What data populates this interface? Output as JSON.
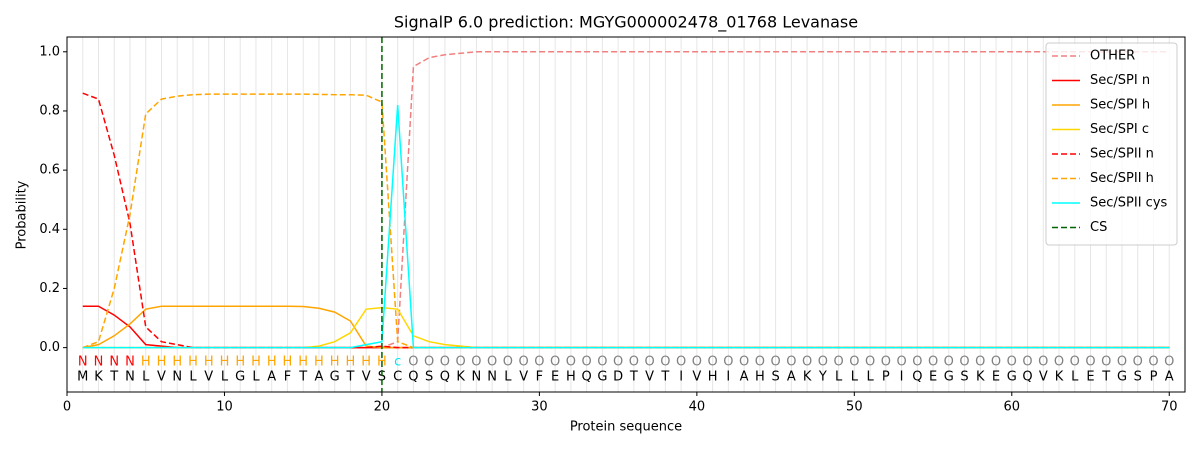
{
  "chart_data": {
    "type": "line",
    "title": "SignalP 6.0 prediction: MGYG000002478_01768 Levanase",
    "xlabel": "Protein sequence",
    "ylabel": "Probability",
    "xlim": [
      0,
      71
    ],
    "ylim": [
      -0.15,
      1.05
    ],
    "xticks": [
      0,
      10,
      20,
      30,
      40,
      50,
      60,
      70
    ],
    "yticks": [
      {
        "value": 0,
        "label": "0.0"
      },
      {
        "value": 0.2,
        "label": "0.2"
      },
      {
        "value": 0.4,
        "label": "0.4"
      },
      {
        "value": 0.6,
        "label": "0.6"
      },
      {
        "value": 0.8,
        "label": "0.8"
      },
      {
        "value": 1,
        "label": "1.0"
      }
    ],
    "grid": true,
    "legend": "upper right",
    "x": [
      1,
      2,
      3,
      4,
      5,
      6,
      7,
      8,
      9,
      10,
      11,
      12,
      13,
      14,
      15,
      16,
      17,
      18,
      19,
      20,
      21,
      22,
      23,
      24,
      25,
      26,
      27,
      28,
      29,
      30,
      31,
      32,
      33,
      34,
      35,
      36,
      37,
      38,
      39,
      40,
      41,
      42,
      43,
      44,
      45,
      46,
      47,
      48,
      49,
      50,
      51,
      52,
      53,
      54,
      55,
      56,
      57,
      58,
      59,
      60,
      61,
      62,
      63,
      64,
      65,
      66,
      67,
      68,
      69,
      70
    ],
    "sequence": [
      "M",
      "K",
      "T",
      "N",
      "L",
      "V",
      "N",
      "L",
      "V",
      "L",
      "G",
      "L",
      "A",
      "F",
      "T",
      "A",
      "G",
      "T",
      "V",
      "S",
      "C",
      "Q",
      "S",
      "Q",
      "K",
      "N",
      "N",
      "L",
      "V",
      "F",
      "E",
      "H",
      "Q",
      "G",
      "D",
      "T",
      "V",
      "T",
      "I",
      "V",
      "H",
      "I",
      "A",
      "H",
      "S",
      "A",
      "K",
      "Y",
      "L",
      "L",
      "L",
      "P",
      "I",
      "Q",
      "E",
      "G",
      "S",
      "K",
      "E",
      "G",
      "Q",
      "V",
      "K",
      "L",
      "E",
      "T",
      "G",
      "S",
      "P",
      "A"
    ],
    "label_segments": [
      {
        "label": "N",
        "color": "#ff0000",
        "start": 1,
        "end": 4
      },
      {
        "label": "H",
        "color": "#ffa500",
        "start": 5,
        "end": 20
      },
      {
        "label": "c",
        "color": "#00e5ee",
        "start": 21,
        "end": 21
      },
      {
        "label": "O",
        "color": "#808080",
        "start": 22,
        "end": 70
      }
    ],
    "series": [
      {
        "name": "OTHER",
        "color": "#f08080",
        "style": "dashed",
        "values": [
          0,
          0,
          0,
          0,
          0,
          0,
          0,
          0,
          0,
          0,
          0,
          0,
          0,
          0,
          0,
          0,
          0,
          0,
          0,
          0,
          0.02,
          0.95,
          0.98,
          0.99,
          0.995,
          1,
          1,
          1,
          1,
          1,
          1,
          1,
          1,
          1,
          1,
          1,
          1,
          1,
          1,
          1,
          1,
          1,
          1,
          1,
          1,
          1,
          1,
          1,
          1,
          1,
          1,
          1,
          1,
          1,
          1,
          1,
          1,
          1,
          1,
          1,
          1,
          1,
          1,
          1,
          1,
          1,
          1,
          1,
          1,
          1
        ]
      },
      {
        "name": "Sec/SPI n",
        "color": "#ff0000",
        "style": "solid",
        "values": [
          0.14,
          0.14,
          0.11,
          0.07,
          0.01,
          0.005,
          0,
          0,
          0,
          0,
          0,
          0,
          0,
          0,
          0,
          0,
          0,
          0,
          0,
          0,
          0,
          0,
          0,
          0,
          0,
          0,
          0,
          0,
          0,
          0,
          0,
          0,
          0,
          0,
          0,
          0,
          0,
          0,
          0,
          0,
          0,
          0,
          0,
          0,
          0,
          0,
          0,
          0,
          0,
          0,
          0,
          0,
          0,
          0,
          0,
          0,
          0,
          0,
          0,
          0,
          0,
          0,
          0,
          0,
          0,
          0,
          0,
          0,
          0,
          0
        ]
      },
      {
        "name": "Sec/SPI h",
        "color": "#ffa500",
        "style": "solid",
        "values": [
          0,
          0.01,
          0.04,
          0.08,
          0.13,
          0.14,
          0.14,
          0.14,
          0.14,
          0.14,
          0.14,
          0.14,
          0.14,
          0.14,
          0.139,
          0.133,
          0.12,
          0.09,
          0.005,
          0,
          0,
          0,
          0,
          0,
          0,
          0,
          0,
          0,
          0,
          0,
          0,
          0,
          0,
          0,
          0,
          0,
          0,
          0,
          0,
          0,
          0,
          0,
          0,
          0,
          0,
          0,
          0,
          0,
          0,
          0,
          0,
          0,
          0,
          0,
          0,
          0,
          0,
          0,
          0,
          0,
          0,
          0,
          0,
          0,
          0,
          0,
          0,
          0,
          0,
          0
        ]
      },
      {
        "name": "Sec/SPI c",
        "color": "#ffd700",
        "style": "solid",
        "values": [
          0,
          0,
          0,
          0,
          0,
          0,
          0,
          0,
          0,
          0,
          0,
          0,
          0,
          0,
          0,
          0.005,
          0.02,
          0.05,
          0.13,
          0.135,
          0.13,
          0.04,
          0.02,
          0.01,
          0.005,
          0,
          0,
          0,
          0,
          0,
          0,
          0,
          0,
          0,
          0,
          0,
          0,
          0,
          0,
          0,
          0,
          0,
          0,
          0,
          0,
          0,
          0,
          0,
          0,
          0,
          0,
          0,
          0,
          0,
          0,
          0,
          0,
          0,
          0,
          0,
          0,
          0,
          0,
          0,
          0,
          0,
          0,
          0,
          0,
          0
        ]
      },
      {
        "name": "Sec/SPII n",
        "color": "#ff0000",
        "style": "dashed",
        "values": [
          0.86,
          0.84,
          0.65,
          0.42,
          0.07,
          0.02,
          0.01,
          0,
          0,
          0,
          0,
          0,
          0,
          0,
          0,
          0,
          0,
          0,
          0,
          0.005,
          0,
          0,
          0,
          0,
          0,
          0,
          0,
          0,
          0,
          0,
          0,
          0,
          0,
          0,
          0,
          0,
          0,
          0,
          0,
          0,
          0,
          0,
          0,
          0,
          0,
          0,
          0,
          0,
          0,
          0,
          0,
          0,
          0,
          0,
          0,
          0,
          0,
          0,
          0,
          0,
          0,
          0,
          0,
          0,
          0,
          0,
          0,
          0,
          0,
          0
        ]
      },
      {
        "name": "Sec/SPII h",
        "color": "#ffa500",
        "style": "dashed",
        "values": [
          0,
          0.02,
          0.2,
          0.45,
          0.79,
          0.84,
          0.85,
          0.855,
          0.857,
          0.857,
          0.857,
          0.857,
          0.857,
          0.857,
          0.857,
          0.856,
          0.855,
          0.855,
          0.853,
          0.83,
          0.02,
          0,
          0,
          0,
          0,
          0,
          0,
          0,
          0,
          0,
          0,
          0,
          0,
          0,
          0,
          0,
          0,
          0,
          0,
          0,
          0,
          0,
          0,
          0,
          0,
          0,
          0,
          0,
          0,
          0,
          0,
          0,
          0,
          0,
          0,
          0,
          0,
          0,
          0,
          0,
          0,
          0,
          0,
          0,
          0,
          0,
          0,
          0,
          0,
          0
        ]
      },
      {
        "name": "Sec/SPII cys",
        "color": "#00ffff",
        "style": "solid",
        "values": [
          0,
          0,
          0,
          0,
          0,
          0,
          0,
          0,
          0,
          0,
          0,
          0,
          0,
          0,
          0,
          0,
          0,
          0,
          0.01,
          0.02,
          0.82,
          0,
          0,
          0,
          0,
          0,
          0,
          0,
          0,
          0,
          0,
          0,
          0,
          0,
          0,
          0,
          0,
          0,
          0,
          0,
          0,
          0,
          0,
          0,
          0,
          0,
          0,
          0,
          0,
          0,
          0,
          0,
          0,
          0,
          0,
          0,
          0,
          0,
          0,
          0,
          0,
          0,
          0,
          0,
          0,
          0,
          0,
          0,
          0,
          0
        ]
      }
    ],
    "vlines": [
      {
        "name": "CS",
        "color": "#006400",
        "style": "dashed",
        "x": 20
      }
    ]
  }
}
